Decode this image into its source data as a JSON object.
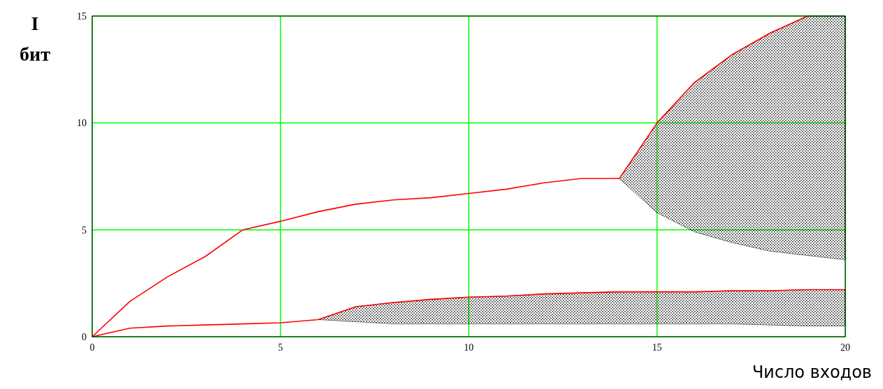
{
  "chart_data": {
    "type": "line",
    "xlabel": "Число входов",
    "ylabel": "I бит",
    "x": [
      0,
      1,
      2,
      3,
      4,
      5,
      6,
      7,
      8,
      9,
      10,
      11,
      12,
      13,
      14,
      15,
      16,
      17,
      18,
      19,
      20
    ],
    "series": [
      {
        "color": "#ff0000",
        "values": [
          0,
          1.65,
          2.8,
          3.75,
          5.0,
          5.4,
          5.85,
          6.2,
          6.4,
          6.5,
          6.7,
          6.9,
          7.2,
          7.4,
          7.4,
          10.0,
          11.9,
          13.2,
          14.2,
          15.0,
          null
        ],
        "lower": [
          null,
          null,
          null,
          null,
          null,
          null,
          null,
          null,
          null,
          null,
          null,
          null,
          null,
          null,
          7.4,
          5.8,
          4.9,
          4.4,
          4.0,
          3.8,
          3.6
        ],
        "upper": [
          null,
          null,
          null,
          null,
          null,
          null,
          null,
          null,
          null,
          null,
          null,
          null,
          null,
          null,
          7.4,
          10.0,
          11.9,
          13.2,
          14.2,
          15.0,
          15.0
        ]
      },
      {
        "color": "#ff0000",
        "values": [
          0,
          0.4,
          0.5,
          0.55,
          0.6,
          0.65,
          0.8,
          1.4,
          1.6,
          1.75,
          1.85,
          1.9,
          2.0,
          2.05,
          2.1,
          2.1,
          2.1,
          2.15,
          2.15,
          2.2,
          2.2
        ],
        "lower": [
          null,
          null,
          null,
          null,
          null,
          null,
          0.8,
          0.7,
          0.6,
          0.6,
          0.6,
          0.6,
          0.6,
          0.6,
          0.6,
          0.6,
          0.6,
          0.6,
          0.55,
          0.5,
          0.5
        ],
        "upper": [
          null,
          null,
          null,
          null,
          null,
          null,
          0.8,
          1.4,
          1.6,
          1.75,
          1.85,
          1.9,
          2.0,
          2.05,
          2.1,
          2.1,
          2.1,
          2.15,
          2.15,
          2.2,
          2.2
        ]
      }
    ],
    "xlim": [
      0,
      20
    ],
    "xticks": [
      0,
      5,
      10,
      15,
      20
    ],
    "ylim": [
      0,
      15
    ],
    "yticks": [
      0,
      5,
      10,
      15
    ],
    "grid": true,
    "marker": "none",
    "line_style": "solid"
  }
}
